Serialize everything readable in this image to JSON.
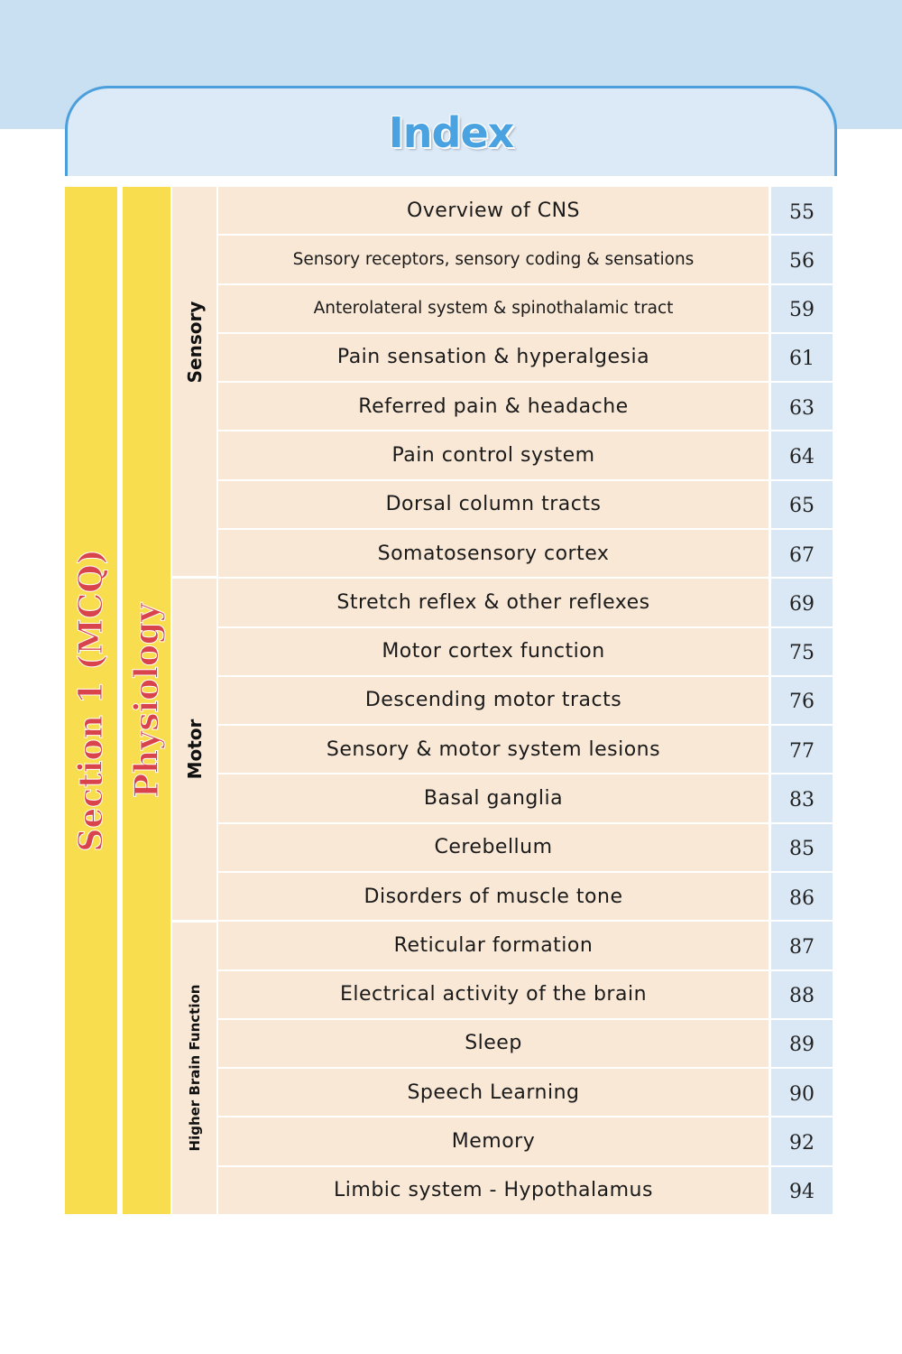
{
  "header": {
    "title": "Index"
  },
  "section": "Section 1 (MCQ)",
  "subject": "Physiology",
  "groups": [
    {
      "label": "Sensory",
      "items": [
        {
          "title": "Overview of CNS",
          "page": "55"
        },
        {
          "title": "Sensory receptors, sensory coding & sensations",
          "page": "56"
        },
        {
          "title": "Anterolateral system & spinothalamic tract",
          "page": "59"
        },
        {
          "title": "Pain sensation & hyperalgesia",
          "page": "61"
        },
        {
          "title": "Referred pain & headache",
          "page": "63"
        },
        {
          "title": "Pain control system",
          "page": "64"
        },
        {
          "title": "Dorsal column tracts",
          "page": "65"
        },
        {
          "title": "Somatosensory cortex",
          "page": "67"
        }
      ]
    },
    {
      "label": "Motor",
      "items": [
        {
          "title": "Stretch reflex & other reflexes",
          "page": "69"
        },
        {
          "title": "Motor cortex function",
          "page": "75"
        },
        {
          "title": "Descending motor tracts",
          "page": "76"
        },
        {
          "title": "Sensory & motor system lesions",
          "page": "77"
        },
        {
          "title": "Basal ganglia",
          "page": "83"
        },
        {
          "title": "Cerebellum",
          "page": "85"
        },
        {
          "title": "Disorders of muscle tone",
          "page": "86"
        }
      ]
    },
    {
      "label": "Higher Brain Function",
      "items": [
        {
          "title": "Reticular formation",
          "page": "87"
        },
        {
          "title": "Electrical activity of the brain",
          "page": "88"
        },
        {
          "title": "Sleep",
          "page": "89"
        },
        {
          "title": "Speech Learning",
          "page": "90"
        },
        {
          "title": "Memory",
          "page": "92"
        },
        {
          "title": "Limbic system - Hypothalamus",
          "page": "94"
        }
      ]
    }
  ]
}
